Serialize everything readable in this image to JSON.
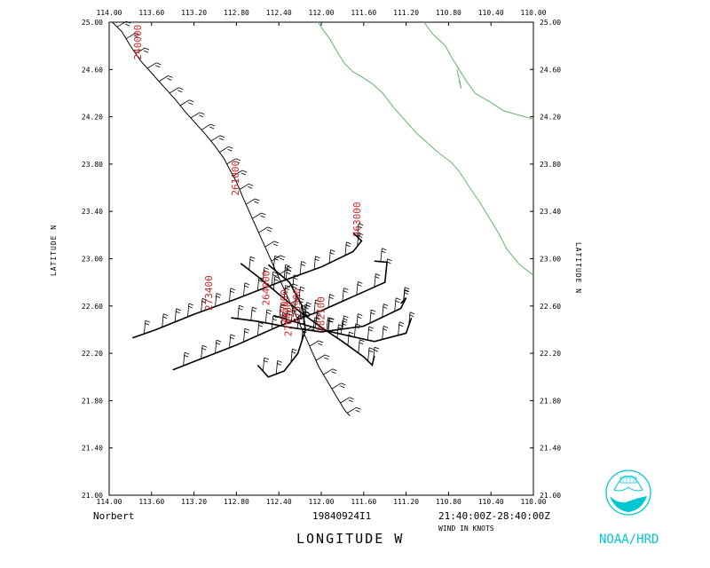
{
  "header": {
    "storm_name": "Norbert",
    "flight_id": "19840924I1",
    "time_range": "21:40:00Z-28:40:00Z"
  },
  "footer": {
    "xlabel": "LONGITUDE   W",
    "wind_units": "WIND IN KNOTS",
    "brand": "NOAA/HRD"
  },
  "axes": {
    "left_label": "LATITUDE   N",
    "right_label": "LATITUDE   N",
    "x_ticks": [
      "114.00",
      "113.60",
      "113.20",
      "112.80",
      "112.40",
      "112.00",
      "111.60",
      "111.20",
      "110.80",
      "110.40",
      "110.00"
    ],
    "y_ticks": [
      "25.00",
      "24.60",
      "24.20",
      "23.80",
      "23.40",
      "23.00",
      "22.60",
      "22.20",
      "21.80",
      "21.40",
      "21.00"
    ]
  },
  "colors": {
    "track": "#000000",
    "coast": "#5fb56a",
    "label": "#cc2222",
    "brand": "#00c8d2"
  },
  "chart_data": {
    "type": "map",
    "xlim": [
      114.0,
      110.0
    ],
    "ylim": [
      21.0,
      25.0
    ],
    "grid": false,
    "track": [
      [
        113.97,
        25.0
      ],
      [
        113.88,
        24.92
      ],
      [
        113.8,
        24.8
      ],
      [
        113.7,
        24.67
      ],
      [
        113.58,
        24.55
      ],
      [
        113.48,
        24.45
      ],
      [
        113.38,
        24.35
      ],
      [
        113.28,
        24.24
      ],
      [
        113.18,
        24.14
      ],
      [
        113.08,
        24.04
      ],
      [
        113.0,
        23.95
      ],
      [
        112.92,
        23.85
      ],
      [
        112.86,
        23.75
      ],
      [
        112.8,
        23.65
      ],
      [
        112.74,
        23.52
      ],
      [
        112.68,
        23.4
      ],
      [
        112.62,
        23.28
      ],
      [
        112.56,
        23.16
      ],
      [
        112.5,
        23.04
      ],
      [
        112.44,
        22.92
      ],
      [
        112.38,
        22.8
      ],
      [
        112.32,
        22.68
      ],
      [
        112.26,
        22.56
      ],
      [
        112.2,
        22.44
      ],
      [
        112.14,
        22.32
      ],
      [
        112.08,
        22.2
      ],
      [
        112.02,
        22.08
      ],
      [
        111.94,
        21.96
      ],
      [
        111.86,
        21.84
      ],
      [
        111.78,
        21.72
      ],
      [
        111.73,
        21.67
      ]
    ],
    "legs": [
      [
        [
          113.78,
          22.33
        ],
        [
          113.56,
          22.4
        ],
        [
          113.2,
          22.53
        ],
        [
          112.8,
          22.66
        ],
        [
          112.4,
          22.8
        ],
        [
          112.0,
          22.93
        ],
        [
          111.7,
          23.06
        ],
        [
          111.62,
          23.15
        ],
        [
          111.7,
          23.22
        ]
      ],
      [
        [
          113.4,
          22.06
        ],
        [
          113.2,
          22.13
        ],
        [
          112.8,
          22.27
        ],
        [
          112.4,
          22.43
        ],
        [
          112.0,
          22.56
        ],
        [
          111.6,
          22.72
        ],
        [
          111.4,
          22.8
        ],
        [
          111.38,
          22.97
        ],
        [
          111.5,
          22.98
        ]
      ],
      [
        [
          112.76,
          22.96
        ],
        [
          112.6,
          22.85
        ],
        [
          112.4,
          22.7
        ],
        [
          112.2,
          22.55
        ],
        [
          112.0,
          22.42
        ],
        [
          111.8,
          22.3
        ],
        [
          111.6,
          22.17
        ],
        [
          111.52,
          22.1
        ],
        [
          111.5,
          22.18
        ]
      ],
      [
        [
          112.85,
          22.5
        ],
        [
          112.6,
          22.47
        ],
        [
          112.3,
          22.42
        ],
        [
          112.0,
          22.38
        ],
        [
          111.6,
          22.43
        ],
        [
          111.25,
          22.58
        ],
        [
          111.2,
          22.67
        ],
        [
          111.25,
          22.62
        ]
      ],
      [
        [
          112.45,
          22.52
        ],
        [
          112.0,
          22.4
        ],
        [
          111.5,
          22.3
        ],
        [
          111.2,
          22.37
        ],
        [
          111.15,
          22.5
        ]
      ],
      [
        [
          112.5,
          22.95
        ],
        [
          112.3,
          22.8
        ],
        [
          112.18,
          22.6
        ],
        [
          112.15,
          22.4
        ],
        [
          112.22,
          22.2
        ],
        [
          112.35,
          22.05
        ],
        [
          112.5,
          22.0
        ],
        [
          112.6,
          22.1
        ]
      ]
    ],
    "coastline": [
      [
        112.03,
        25.0
      ],
      [
        111.98,
        24.93
      ],
      [
        111.92,
        24.86
      ],
      [
        111.85,
        24.75
      ],
      [
        111.78,
        24.65
      ],
      [
        111.7,
        24.58
      ],
      [
        111.62,
        24.54
      ],
      [
        111.52,
        24.48
      ],
      [
        111.42,
        24.4
      ],
      [
        111.32,
        24.28
      ],
      [
        111.22,
        24.18
      ],
      [
        111.1,
        24.06
      ],
      [
        111.0,
        23.98
      ],
      [
        110.9,
        23.9
      ],
      [
        110.78,
        23.82
      ],
      [
        110.7,
        23.74
      ],
      [
        110.6,
        23.6
      ],
      [
        110.5,
        23.47
      ],
      [
        110.42,
        23.35
      ],
      [
        110.33,
        23.22
      ],
      [
        110.25,
        23.08
      ],
      [
        110.13,
        22.95
      ],
      [
        110.0,
        22.86
      ]
    ],
    "baja_coast": [
      [
        111.03,
        25.0
      ],
      [
        110.95,
        24.9
      ],
      [
        110.83,
        24.8
      ],
      [
        110.77,
        24.7
      ],
      [
        110.7,
        24.6
      ],
      [
        110.63,
        24.5
      ],
      [
        110.55,
        24.4
      ],
      [
        110.4,
        24.32
      ],
      [
        110.28,
        24.25
      ],
      [
        110.0,
        24.18
      ]
    ],
    "island": [
      [
        110.72,
        24.6
      ],
      [
        110.7,
        24.52
      ],
      [
        110.68,
        24.44
      ],
      [
        110.7,
        24.5
      ]
    ],
    "fix_labels": [
      {
        "text": "240000",
        "lon": 113.7,
        "lat": 24.98,
        "angle": -90
      },
      {
        "text": "261000",
        "lon": 112.78,
        "lat": 23.83,
        "angle": -90
      },
      {
        "text": "263000",
        "lon": 111.63,
        "lat": 23.48,
        "angle": -90
      },
      {
        "text": "264000",
        "lon": 112.49,
        "lat": 22.9,
        "angle": -90
      },
      {
        "text": "273400",
        "lon": 113.03,
        "lat": 22.86,
        "angle": -90
      },
      {
        "text": "265000",
        "lon": 112.32,
        "lat": 22.74,
        "angle": -90
      },
      {
        "text": "275900",
        "lon": 112.2,
        "lat": 22.75,
        "angle": -90
      },
      {
        "text": "270400",
        "lon": 112.28,
        "lat": 22.64,
        "angle": -90
      },
      {
        "text": "282100",
        "lon": 111.97,
        "lat": 22.68,
        "angle": -90
      }
    ]
  }
}
